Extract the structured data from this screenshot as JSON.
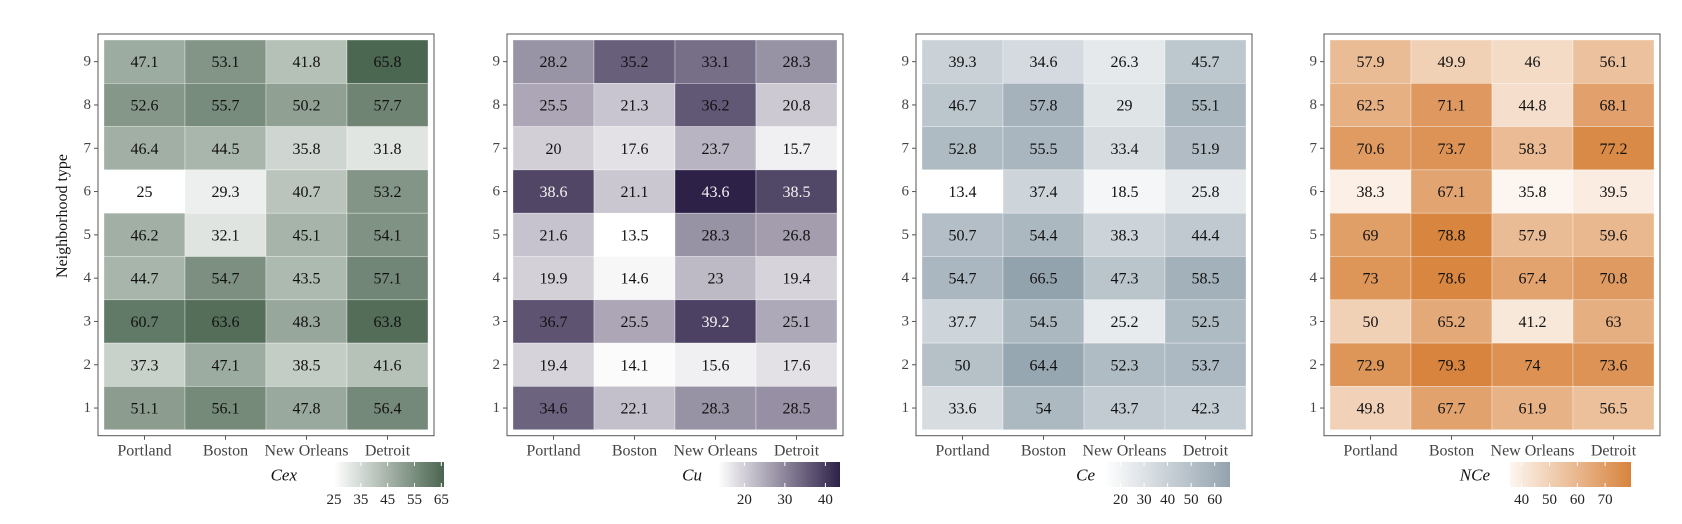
{
  "ylabel": "Neighborhood type",
  "chart_data": [
    {
      "type": "heatmap",
      "legend_title": "Cex",
      "x": [
        "Portland",
        "Boston",
        "New Orleans",
        "Detroit"
      ],
      "y": [
        "9",
        "8",
        "7",
        "6",
        "5",
        "4",
        "3",
        "2",
        "1"
      ],
      "values": [
        [
          47.1,
          53.1,
          41.8,
          65.8
        ],
        [
          52.6,
          55.7,
          50.2,
          57.7
        ],
        [
          46.4,
          44.5,
          35.8,
          31.8
        ],
        [
          25,
          29.3,
          40.7,
          53.2
        ],
        [
          46.2,
          32.1,
          45.1,
          54.1
        ],
        [
          44.7,
          54.7,
          43.5,
          57.1
        ],
        [
          60.7,
          63.6,
          48.3,
          63.8
        ],
        [
          37.3,
          47.1,
          38.5,
          41.6
        ],
        [
          51.1,
          56.1,
          47.8,
          56.4
        ]
      ],
      "color_low": "#ffffff",
      "color_high": "#4a6550",
      "scale_range": [
        25,
        66
      ],
      "legend_ticks": [
        "25",
        "35",
        "45",
        "55",
        "65"
      ],
      "legend_tick_values": [
        25,
        35,
        45,
        55,
        65
      ]
    },
    {
      "type": "heatmap",
      "legend_title": "Cu",
      "x": [
        "Portland",
        "Boston",
        "New Orleans",
        "Detroit"
      ],
      "y": [
        "9",
        "8",
        "7",
        "6",
        "5",
        "4",
        "3",
        "2",
        "1"
      ],
      "values": [
        [
          28.2,
          35.2,
          33.1,
          28.3
        ],
        [
          25.5,
          21.3,
          36.2,
          20.8
        ],
        [
          20,
          17.6,
          23.7,
          15.7
        ],
        [
          38.6,
          21.1,
          43.6,
          38.5
        ],
        [
          21.6,
          13.5,
          28.3,
          26.8
        ],
        [
          19.9,
          14.6,
          23,
          19.4
        ],
        [
          36.7,
          25.5,
          39.2,
          25.1
        ],
        [
          19.4,
          14.1,
          15.6,
          17.6
        ],
        [
          34.6,
          22.1,
          28.3,
          28.5
        ]
      ],
      "color_low": "#ffffff",
      "color_high": "#2e2148",
      "scale_range": [
        13.5,
        43.6
      ],
      "legend_ticks": [
        "20",
        "30",
        "40"
      ],
      "legend_tick_values": [
        20,
        30,
        40
      ]
    },
    {
      "type": "heatmap",
      "legend_title": "Ce",
      "x": [
        "Portland",
        "Boston",
        "New Orleans",
        "Detroit"
      ],
      "y": [
        "9",
        "8",
        "7",
        "6",
        "5",
        "4",
        "3",
        "2",
        "1"
      ],
      "values": [
        [
          39.3,
          34.6,
          26.3,
          45.7
        ],
        [
          46.7,
          57.8,
          29,
          55.1
        ],
        [
          52.8,
          55.5,
          33.4,
          51.9
        ],
        [
          13.4,
          37.4,
          18.5,
          25.8
        ],
        [
          50.7,
          54.4,
          38.3,
          44.4
        ],
        [
          54.7,
          66.5,
          47.3,
          58.5
        ],
        [
          37.7,
          54.5,
          25.2,
          52.5
        ],
        [
          50,
          64.4,
          52.3,
          53.7
        ],
        [
          33.6,
          54,
          43.7,
          42.3
        ]
      ],
      "color_low": "#ffffff",
      "color_high": "#93a3ae",
      "scale_range": [
        13.4,
        66.5
      ],
      "legend_ticks": [
        "20",
        "30",
        "40",
        "50",
        "60"
      ],
      "legend_tick_values": [
        20,
        30,
        40,
        50,
        60
      ]
    },
    {
      "type": "heatmap",
      "legend_title": "NCe",
      "x": [
        "Portland",
        "Boston",
        "New Orleans",
        "Detroit"
      ],
      "y": [
        "9",
        "8",
        "7",
        "6",
        "5",
        "4",
        "3",
        "2",
        "1"
      ],
      "values": [
        [
          57.9,
          49.9,
          46,
          56.1
        ],
        [
          62.5,
          71.1,
          44.8,
          68.1
        ],
        [
          70.6,
          73.7,
          58.3,
          77.2
        ],
        [
          38.3,
          67.1,
          35.8,
          39.5
        ],
        [
          69,
          78.8,
          57.9,
          59.6
        ],
        [
          73,
          78.6,
          67.4,
          70.8
        ],
        [
          50,
          65.2,
          41.2,
          63
        ],
        [
          72.9,
          79.3,
          74,
          73.6
        ],
        [
          49.8,
          67.7,
          61.9,
          56.5
        ]
      ],
      "color_low": "#fdf6f0",
      "color_high": "#d8843e",
      "scale_range": [
        35.8,
        79.3
      ],
      "legend_ticks": [
        "40",
        "50",
        "60",
        "70"
      ],
      "legend_tick_values": [
        40,
        50,
        60,
        70
      ]
    }
  ]
}
